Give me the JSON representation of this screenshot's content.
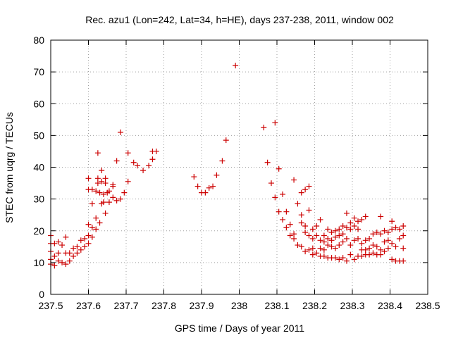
{
  "chart_data": {
    "type": "scatter",
    "title": "Rec. azu1 (Lon=242, Lat=34, h=HE), days 237-238, 2011, window 002",
    "xlabel": "GPS time / Days of year 2011",
    "ylabel": "STEC from uqrg / TECUs",
    "xlim": [
      237.5,
      238.5
    ],
    "ylim": [
      0,
      80
    ],
    "xticks": [
      237.5,
      237.6,
      237.7,
      237.8,
      237.9,
      238,
      238.1,
      238.2,
      238.3,
      238.4,
      238.5
    ],
    "xtick_labels": [
      "237.5",
      "237.6",
      "237.7",
      "237.8",
      "237.9",
      "238",
      "238.1",
      "238.2",
      "238.3",
      "238.4",
      "238.5"
    ],
    "yticks": [
      0,
      10,
      20,
      30,
      40,
      50,
      60,
      70,
      80
    ],
    "ytick_labels": [
      "0",
      "10",
      "20",
      "30",
      "40",
      "50",
      "60",
      "70",
      "80"
    ],
    "grid": true,
    "marker_color": "#cc0000",
    "marker": "+",
    "series": [
      {
        "name": "STEC",
        "points": [
          [
            237.5,
            18.5
          ],
          [
            237.5,
            16.0
          ],
          [
            237.5,
            13.5
          ],
          [
            237.5,
            11.0
          ],
          [
            237.5,
            9.5
          ],
          [
            237.51,
            16.0
          ],
          [
            237.51,
            12.0
          ],
          [
            237.51,
            9.0
          ],
          [
            237.52,
            16.5
          ],
          [
            237.52,
            13.0
          ],
          [
            237.52,
            10.5
          ],
          [
            237.53,
            15.5
          ],
          [
            237.53,
            10.0
          ],
          [
            237.54,
            18.0
          ],
          [
            237.54,
            13.0
          ],
          [
            237.54,
            9.5
          ],
          [
            237.55,
            13.0
          ],
          [
            237.55,
            10.5
          ],
          [
            237.56,
            14.5
          ],
          [
            237.56,
            12.0
          ],
          [
            237.57,
            15.0
          ],
          [
            237.57,
            13.0
          ],
          [
            237.58,
            17.0
          ],
          [
            237.58,
            14.0
          ],
          [
            237.59,
            17.5
          ],
          [
            237.59,
            15.0
          ],
          [
            237.6,
            36.5
          ],
          [
            237.6,
            33.0
          ],
          [
            237.6,
            22.0
          ],
          [
            237.6,
            18.5
          ],
          [
            237.6,
            16.0
          ],
          [
            237.61,
            33.0
          ],
          [
            237.61,
            28.5
          ],
          [
            237.61,
            21.0
          ],
          [
            237.61,
            18.0
          ],
          [
            237.62,
            32.5
          ],
          [
            237.62,
            24.0
          ],
          [
            237.62,
            20.5
          ],
          [
            237.625,
            44.5
          ],
          [
            237.625,
            36.5
          ],
          [
            237.625,
            35.0
          ],
          [
            237.63,
            32.0
          ],
          [
            237.63,
            22.5
          ],
          [
            237.635,
            39.0
          ],
          [
            237.635,
            35.5
          ],
          [
            237.635,
            28.5
          ],
          [
            237.64,
            31.5
          ],
          [
            237.64,
            29.0
          ],
          [
            237.645,
            36.5
          ],
          [
            237.645,
            35.0
          ],
          [
            237.645,
            25.5
          ],
          [
            237.65,
            32.0
          ],
          [
            237.655,
            32.5
          ],
          [
            237.655,
            29.0
          ],
          [
            237.665,
            34.5
          ],
          [
            237.665,
            34.0
          ],
          [
            237.665,
            30.5
          ],
          [
            237.675,
            42.0
          ],
          [
            237.675,
            29.5
          ],
          [
            237.685,
            51.0
          ],
          [
            237.685,
            30.0
          ],
          [
            237.695,
            32.0
          ],
          [
            237.705,
            44.5
          ],
          [
            237.705,
            35.5
          ],
          [
            237.72,
            41.5
          ],
          [
            237.73,
            40.5
          ],
          [
            237.745,
            39.0
          ],
          [
            237.76,
            40.5
          ],
          [
            237.77,
            42.5
          ],
          [
            237.77,
            45.0
          ],
          [
            237.78,
            45.0
          ],
          [
            237.88,
            37.0
          ],
          [
            237.89,
            34.0
          ],
          [
            237.9,
            32.0
          ],
          [
            237.91,
            32.0
          ],
          [
            237.92,
            33.5
          ],
          [
            237.93,
            34.0
          ],
          [
            237.94,
            37.5
          ],
          [
            237.955,
            42.0
          ],
          [
            237.965,
            48.5
          ],
          [
            237.99,
            72.0
          ],
          [
            238.065,
            52.5
          ],
          [
            238.075,
            41.5
          ],
          [
            238.085,
            35.0
          ],
          [
            238.095,
            54.0
          ],
          [
            238.095,
            30.5
          ],
          [
            238.105,
            39.5
          ],
          [
            238.105,
            26.0
          ],
          [
            238.115,
            31.5
          ],
          [
            238.115,
            23.5
          ],
          [
            238.125,
            26.0
          ],
          [
            238.125,
            21.0
          ],
          [
            238.135,
            22.0
          ],
          [
            238.135,
            18.5
          ],
          [
            238.145,
            36.0
          ],
          [
            238.145,
            19.0
          ],
          [
            238.145,
            17.5
          ],
          [
            238.155,
            28.5
          ],
          [
            238.155,
            15.5
          ],
          [
            238.165,
            32.0
          ],
          [
            238.165,
            25.0
          ],
          [
            238.165,
            22.5
          ],
          [
            238.165,
            15.0
          ],
          [
            238.175,
            33.0
          ],
          [
            238.175,
            21.5
          ],
          [
            238.175,
            19.5
          ],
          [
            238.175,
            13.5
          ],
          [
            238.185,
            34.0
          ],
          [
            238.185,
            26.5
          ],
          [
            238.185,
            18.5
          ],
          [
            238.185,
            14.0
          ],
          [
            238.195,
            20.5
          ],
          [
            238.195,
            17.5
          ],
          [
            238.195,
            14.5
          ],
          [
            238.195,
            12.5
          ],
          [
            238.205,
            21.5
          ],
          [
            238.205,
            18.5
          ],
          [
            238.205,
            13.0
          ],
          [
            238.215,
            23.5
          ],
          [
            238.215,
            17.0
          ],
          [
            238.215,
            14.5
          ],
          [
            238.215,
            12.0
          ],
          [
            238.225,
            18.5
          ],
          [
            238.225,
            16.5
          ],
          [
            238.225,
            14.0
          ],
          [
            238.225,
            12.0
          ],
          [
            238.235,
            20.5
          ],
          [
            238.235,
            17.5
          ],
          [
            238.235,
            15.5
          ],
          [
            238.235,
            11.5
          ],
          [
            238.245,
            19.5
          ],
          [
            238.245,
            17.0
          ],
          [
            238.245,
            15.0
          ],
          [
            238.245,
            11.5
          ],
          [
            238.255,
            20.0
          ],
          [
            238.255,
            18.0
          ],
          [
            238.255,
            14.5
          ],
          [
            238.255,
            11.5
          ],
          [
            238.265,
            20.5
          ],
          [
            238.265,
            18.5
          ],
          [
            238.265,
            15.5
          ],
          [
            238.265,
            11.0
          ],
          [
            238.275,
            21.5
          ],
          [
            238.275,
            19.0
          ],
          [
            238.275,
            16.5
          ],
          [
            238.275,
            11.5
          ],
          [
            238.285,
            25.5
          ],
          [
            238.285,
            21.0
          ],
          [
            238.285,
            17.5
          ],
          [
            238.285,
            10.5
          ],
          [
            238.295,
            22.5
          ],
          [
            238.295,
            20.5
          ],
          [
            238.295,
            15.5
          ],
          [
            238.295,
            12.5
          ],
          [
            238.305,
            24.0
          ],
          [
            238.305,
            21.5
          ],
          [
            238.305,
            17.0
          ],
          [
            238.305,
            11.0
          ],
          [
            238.315,
            23.0
          ],
          [
            238.315,
            20.5
          ],
          [
            238.315,
            17.5
          ],
          [
            238.315,
            12.0
          ],
          [
            238.325,
            23.5
          ],
          [
            238.325,
            16.0
          ],
          [
            238.325,
            14.0
          ],
          [
            238.325,
            12.0
          ],
          [
            238.335,
            24.5
          ],
          [
            238.335,
            17.0
          ],
          [
            238.335,
            14.0
          ],
          [
            238.335,
            12.5
          ],
          [
            238.345,
            17.5
          ],
          [
            238.345,
            14.5
          ],
          [
            238.345,
            12.5
          ],
          [
            238.355,
            19.0
          ],
          [
            238.355,
            15.5
          ],
          [
            238.355,
            13.0
          ],
          [
            238.365,
            19.5
          ],
          [
            238.365,
            15.0
          ],
          [
            238.365,
            12.5
          ],
          [
            238.375,
            24.5
          ],
          [
            238.375,
            19.0
          ],
          [
            238.375,
            14.0
          ],
          [
            238.375,
            12.5
          ],
          [
            238.385,
            20.0
          ],
          [
            238.385,
            16.5
          ],
          [
            238.385,
            13.5
          ],
          [
            238.395,
            19.5
          ],
          [
            238.395,
            17.0
          ],
          [
            238.395,
            14.5
          ],
          [
            238.405,
            23.0
          ],
          [
            238.405,
            20.5
          ],
          [
            238.405,
            16.0
          ],
          [
            238.405,
            11.0
          ],
          [
            238.415,
            21.0
          ],
          [
            238.415,
            15.0
          ],
          [
            238.415,
            10.5
          ],
          [
            238.425,
            20.5
          ],
          [
            238.425,
            17.5
          ],
          [
            238.425,
            10.5
          ],
          [
            238.435,
            21.5
          ],
          [
            238.435,
            18.5
          ],
          [
            238.435,
            14.5
          ],
          [
            238.435,
            10.5
          ]
        ]
      }
    ]
  }
}
